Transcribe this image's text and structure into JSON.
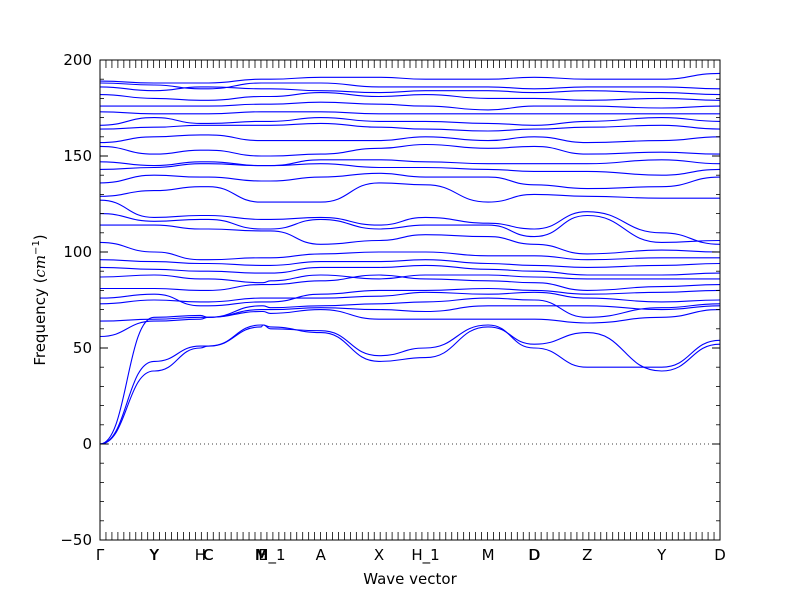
{
  "chart_data": {
    "type": "line",
    "title": "",
    "xlabel": "Wave vector",
    "ylabel": "Frequency",
    "ylabel_unit": "cm",
    "ylabel_unit_exp": "−1",
    "ylim": [
      -50,
      200
    ],
    "yticks": [
      -50,
      0,
      50,
      100,
      150,
      200
    ],
    "x_path_labels": [
      "Γ",
      "Y",
      "Y",
      "H",
      "C",
      "C",
      "M",
      "E",
      "M_1",
      "A",
      "X",
      "H_1",
      "M",
      "D",
      "D",
      "Z",
      "Y",
      "D"
    ],
    "x_path_positions": [
      0,
      0.087,
      0.088,
      0.162,
      0.174,
      0.175,
      0.26,
      0.263,
      0.275,
      0.356,
      0.45,
      0.525,
      0.626,
      0.7,
      0.701,
      0.786,
      0.906,
      1.0
    ],
    "zero_line": "dotted",
    "grid": false,
    "series_color": "#0000ff",
    "series": [
      {
        "values": [
          0,
          66,
          66,
          67,
          66,
          66,
          69,
          69,
          68,
          70,
          65,
          65,
          65,
          65,
          65,
          63,
          66,
          70
        ]
      },
      {
        "values": [
          0,
          43,
          43,
          51,
          51,
          51,
          62,
          62,
          61,
          58,
          43,
          45,
          61,
          52,
          52,
          58,
          38,
          52
        ]
      },
      {
        "values": [
          0,
          38,
          38,
          50,
          51,
          51,
          61,
          62,
          60,
          59,
          46,
          50,
          62,
          50,
          50,
          40,
          40,
          54
        ]
      },
      {
        "values": [
          56,
          64,
          64,
          65,
          66,
          66,
          72,
          72,
          71,
          72,
          73,
          74,
          76,
          75,
          75,
          66,
          71,
          73
        ]
      },
      {
        "values": [
          64,
          65,
          65,
          66,
          66,
          66,
          70,
          70,
          70,
          71,
          70,
          69,
          72,
          72,
          72,
          72,
          70,
          72
        ]
      },
      {
        "values": [
          73,
          75,
          75,
          74,
          74,
          74,
          76,
          76,
          76,
          76,
          77,
          79,
          78,
          79,
          79,
          76,
          74,
          75
        ]
      },
      {
        "values": [
          76,
          78,
          78,
          72,
          72,
          72,
          74,
          74,
          74,
          78,
          80,
          80,
          81,
          80,
          80,
          78,
          79,
          80
        ]
      },
      {
        "values": [
          81,
          81,
          81,
          80,
          80,
          80,
          83,
          83,
          83,
          85,
          88,
          86,
          85,
          84,
          84,
          80,
          82,
          83
        ]
      },
      {
        "values": [
          87,
          88,
          88,
          86,
          86,
          86,
          84,
          84,
          85,
          88,
          86,
          88,
          88,
          87,
          87,
          86,
          86,
          86
        ]
      },
      {
        "values": [
          92,
          91,
          91,
          90,
          90,
          90,
          89,
          89,
          89,
          92,
          92,
          93,
          91,
          90,
          90,
          88,
          88,
          89
        ]
      },
      {
        "values": [
          96,
          95,
          95,
          94,
          94,
          94,
          93,
          93,
          93,
          95,
          95,
          96,
          94,
          93,
          93,
          92,
          93,
          94
        ]
      },
      {
        "values": [
          105,
          100,
          100,
          96,
          96,
          96,
          97,
          97,
          97,
          99,
          100,
          100,
          98,
          98,
          98,
          96,
          97,
          97
        ]
      },
      {
        "values": [
          114,
          114,
          114,
          112,
          112,
          112,
          111,
          111,
          111,
          104,
          106,
          109,
          108,
          104,
          104,
          99,
          101,
          100
        ]
      },
      {
        "values": [
          120,
          116,
          116,
          117,
          117,
          117,
          112,
          112,
          112,
          117,
          112,
          114,
          114,
          108,
          108,
          119,
          105,
          106
        ]
      },
      {
        "values": [
          127,
          118,
          118,
          119,
          119,
          119,
          117,
          117,
          117,
          118,
          114,
          118,
          115,
          112,
          112,
          121,
          110,
          104
        ]
      },
      {
        "values": [
          129,
          132,
          132,
          134,
          134,
          134,
          126,
          126,
          126,
          126,
          136,
          135,
          126,
          130,
          130,
          129,
          128,
          128
        ]
      },
      {
        "values": [
          136,
          140,
          140,
          139,
          139,
          139,
          137,
          137,
          137,
          139,
          141,
          139,
          139,
          135,
          135,
          133,
          134,
          139
        ]
      },
      {
        "values": [
          143,
          144,
          144,
          146,
          146,
          146,
          145,
          145,
          145,
          146,
          144,
          144,
          143,
          142,
          142,
          142,
          140,
          143
        ]
      },
      {
        "values": [
          147,
          145,
          145,
          147,
          147,
          147,
          145,
          145,
          145,
          148,
          148,
          147,
          146,
          146,
          146,
          146,
          148,
          146
        ]
      },
      {
        "values": [
          155,
          151,
          151,
          153,
          153,
          153,
          150,
          150,
          150,
          151,
          154,
          156,
          154,
          155,
          155,
          151,
          152,
          151
        ]
      },
      {
        "values": [
          157,
          160,
          160,
          161,
          161,
          161,
          158,
          158,
          158,
          158,
          158,
          160,
          158,
          160,
          160,
          157,
          158,
          160
        ]
      },
      {
        "values": [
          164,
          165,
          165,
          166,
          166,
          166,
          166,
          166,
          166,
          167,
          165,
          164,
          163,
          164,
          164,
          165,
          166,
          164
        ]
      },
      {
        "values": [
          166,
          170,
          170,
          167,
          167,
          167,
          168,
          168,
          168,
          170,
          168,
          168,
          167,
          166,
          166,
          168,
          170,
          168
        ]
      },
      {
        "values": [
          173,
          172,
          172,
          172,
          172,
          172,
          173,
          173,
          173,
          173,
          172,
          172,
          172,
          172,
          172,
          172,
          172,
          172
        ]
      },
      {
        "values": [
          176,
          176,
          176,
          176,
          176,
          176,
          177,
          177,
          177,
          178,
          177,
          176,
          174,
          176,
          176,
          176,
          175,
          176
        ]
      },
      {
        "values": [
          182,
          180,
          180,
          179,
          179,
          179,
          181,
          181,
          181,
          183,
          181,
          182,
          180,
          180,
          180,
          179,
          180,
          179
        ]
      },
      {
        "values": [
          186,
          184,
          184,
          186,
          186,
          186,
          185,
          185,
          185,
          184,
          183,
          184,
          184,
          183,
          183,
          184,
          183,
          182
        ]
      },
      {
        "values": [
          188,
          187,
          187,
          185,
          185,
          185,
          188,
          188,
          188,
          188,
          186,
          186,
          186,
          185,
          185,
          186,
          186,
          185
        ]
      },
      {
        "values": [
          189,
          188,
          188,
          188,
          188,
          188,
          190,
          190,
          190,
          191,
          191,
          190,
          190,
          191,
          191,
          190,
          190,
          193
        ]
      }
    ]
  }
}
